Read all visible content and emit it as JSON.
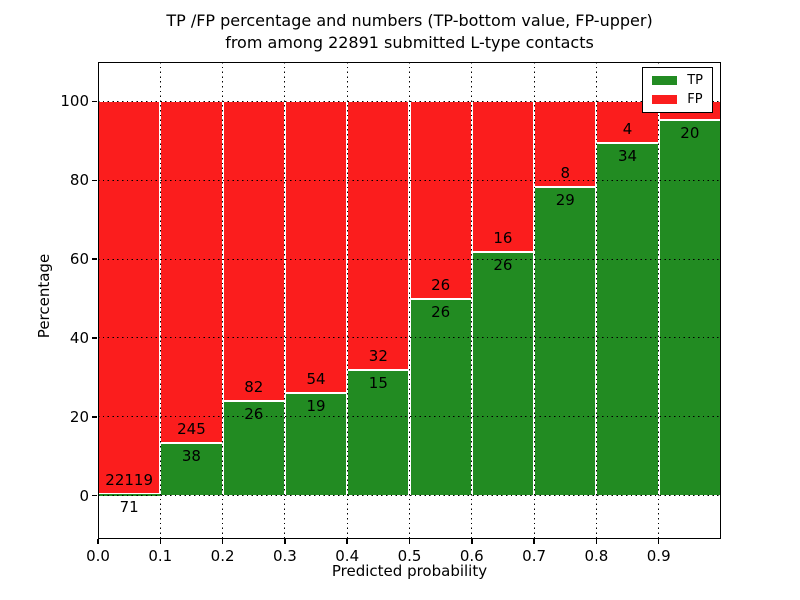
{
  "chart_data": {
    "type": "bar",
    "subtype": "stacked-percentage-histogram",
    "title_lines": [
      "TP /FP percentage and numbers (TP-bottom value, FP-upper)",
      "from among 22891 submitted L-type contacts"
    ],
    "xlabel": "Predicted probability",
    "ylabel": "Percentage",
    "x_tick_labels": [
      "0.0",
      "0.1",
      "0.2",
      "0.3",
      "0.4",
      "0.5",
      "0.6",
      "0.7",
      "0.8",
      "0.9"
    ],
    "y_tick_labels": [
      "0",
      "20",
      "40",
      "60",
      "80",
      "100"
    ],
    "y_tick_values": [
      0,
      20,
      40,
      60,
      80,
      100
    ],
    "xlim": [
      0.0,
      1.0
    ],
    "ylim": [
      -11,
      110
    ],
    "grid": "dotted",
    "legend": {
      "position": "upper-right",
      "entries": [
        {
          "label": "TP",
          "color": "#228b22"
        },
        {
          "label": "FP",
          "color": "#fb1d1d"
        }
      ]
    },
    "colors": {
      "tp": "#228b22",
      "fp": "#fb1d1d",
      "edge": "#ffffff"
    },
    "bars": [
      {
        "range": [
          0.0,
          0.1
        ],
        "tp": 71,
        "fp": 22119,
        "tp_percent": 0.32
      },
      {
        "range": [
          0.1,
          0.2
        ],
        "tp": 38,
        "fp": 245,
        "tp_percent": 13.43
      },
      {
        "range": [
          0.2,
          0.3
        ],
        "tp": 26,
        "fp": 82,
        "tp_percent": 24.07
      },
      {
        "range": [
          0.3,
          0.4
        ],
        "tp": 19,
        "fp": 54,
        "tp_percent": 26.03
      },
      {
        "range": [
          0.4,
          0.5
        ],
        "tp": 15,
        "fp": 32,
        "tp_percent": 31.91
      },
      {
        "range": [
          0.5,
          0.6
        ],
        "tp": 26,
        "fp": 26,
        "tp_percent": 50.0
      },
      {
        "range": [
          0.6,
          0.7
        ],
        "tp": 26,
        "fp": 16,
        "tp_percent": 61.9
      },
      {
        "range": [
          0.7,
          0.8
        ],
        "tp": 29,
        "fp": 8,
        "tp_percent": 78.38
      },
      {
        "range": [
          0.8,
          0.9
        ],
        "tp": 34,
        "fp": 4,
        "tp_percent": 89.47
      },
      {
        "range": [
          0.9,
          1.0
        ],
        "tp": 20,
        "fp": null,
        "tp_percent": 95.2
      }
    ]
  }
}
